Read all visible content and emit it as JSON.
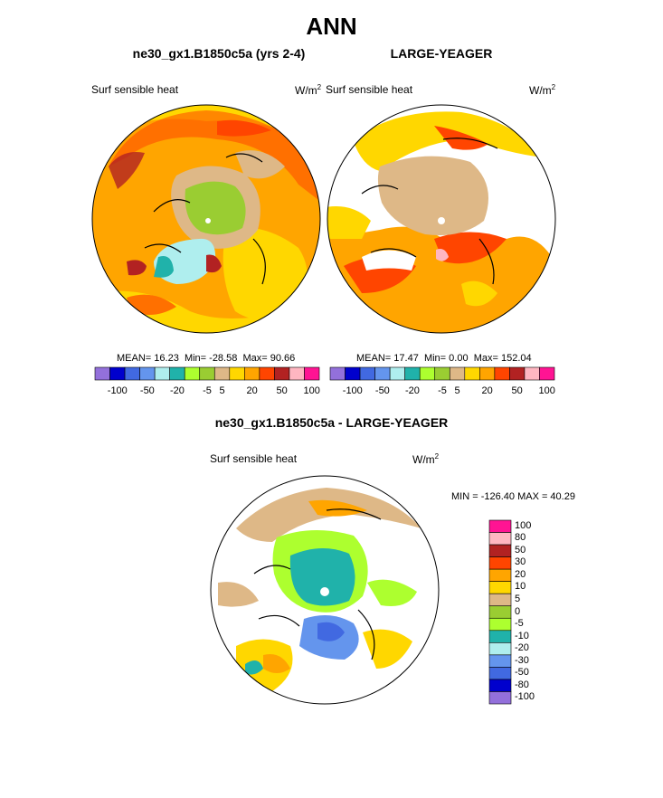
{
  "title": "ANN",
  "panels": [
    {
      "heading": "ne30_gx1.B1850c5a (yrs 2-4)",
      "var_label": "Surf sensible heat",
      "units_base": "W/m",
      "units_exp": "2",
      "stats": {
        "mean_label": "MEAN=",
        "mean": "16.23",
        "min_label": "Min=",
        "min": "-28.58",
        "max_label": "Max=",
        "max": "90.66"
      }
    },
    {
      "heading": "LARGE-YEAGER",
      "var_label": "Surf sensible heat",
      "units_base": "W/m",
      "units_exp": "2",
      "stats": {
        "mean_label": "MEAN=",
        "mean": "17.47",
        "min_label": "Min=",
        "min": "0.00",
        "max_label": "Max=",
        "max": "152.04"
      }
    },
    {
      "heading": "ne30_gx1.B1850c5a - LARGE-YEAGER",
      "var_label": "Surf sensible heat",
      "units_base": "W/m",
      "units_exp": "2",
      "minmax": "MIN = -126.40 MAX =  40.29"
    }
  ],
  "colorbar_h": {
    "colors": [
      "#9370db",
      "#0000cd",
      "#4169e1",
      "#6495ed",
      "#afeeee",
      "#20b2aa",
      "#adff2f",
      "#9acd32",
      "#deb887",
      "#ffd700",
      "#ffa500",
      "#ff4500",
      "#b22222",
      "#ffb6c1",
      "#ff1493"
    ],
    "tick_labels": [
      "-100",
      "-50",
      "-20",
      "-5",
      "5",
      "20",
      "50",
      "100"
    ]
  },
  "colorbar_v": {
    "colors": [
      "#ff1493",
      "#ffb6c1",
      "#b22222",
      "#ff4500",
      "#ffa500",
      "#ffd700",
      "#deb887",
      "#9acd32",
      "#adff2f",
      "#20b2aa",
      "#afeeee",
      "#6495ed",
      "#4169e1",
      "#0000cd",
      "#9370db"
    ],
    "tick_labels": [
      "100",
      "80",
      "50",
      "30",
      "20",
      "10",
      "5",
      "0",
      "-5",
      "-10",
      "-20",
      "-30",
      "-50",
      "-80",
      "-100"
    ]
  },
  "chart_data": [
    {
      "type": "heatmap",
      "projection": "polar stereographic (Arctic)",
      "title": "ne30_gx1.B1850c5a (yrs 2-4)",
      "variable": "Surf sensible heat",
      "units": "W/m2",
      "mean": 16.23,
      "min": -28.58,
      "max": 90.66,
      "contour_levels": [
        -100,
        -80,
        -50,
        -30,
        -20,
        -10,
        -5,
        0,
        5,
        10,
        20,
        30,
        50,
        80,
        100
      ]
    },
    {
      "type": "heatmap",
      "projection": "polar stereographic (Arctic)",
      "title": "LARGE-YEAGER",
      "variable": "Surf sensible heat",
      "units": "W/m2",
      "mean": 17.47,
      "min": 0.0,
      "max": 152.04,
      "contour_levels": [
        -100,
        -80,
        -50,
        -30,
        -20,
        -10,
        -5,
        0,
        5,
        10,
        20,
        30,
        50,
        80,
        100
      ]
    },
    {
      "type": "heatmap",
      "projection": "polar stereographic (Arctic)",
      "title": "ne30_gx1.B1850c5a - LARGE-YEAGER",
      "variable": "Surf sensible heat",
      "units": "W/m2",
      "min": -126.4,
      "max": 40.29,
      "contour_levels": [
        -100,
        -80,
        -50,
        -30,
        -20,
        -10,
        -5,
        0,
        5,
        10,
        20,
        30,
        50,
        80,
        100
      ]
    }
  ]
}
